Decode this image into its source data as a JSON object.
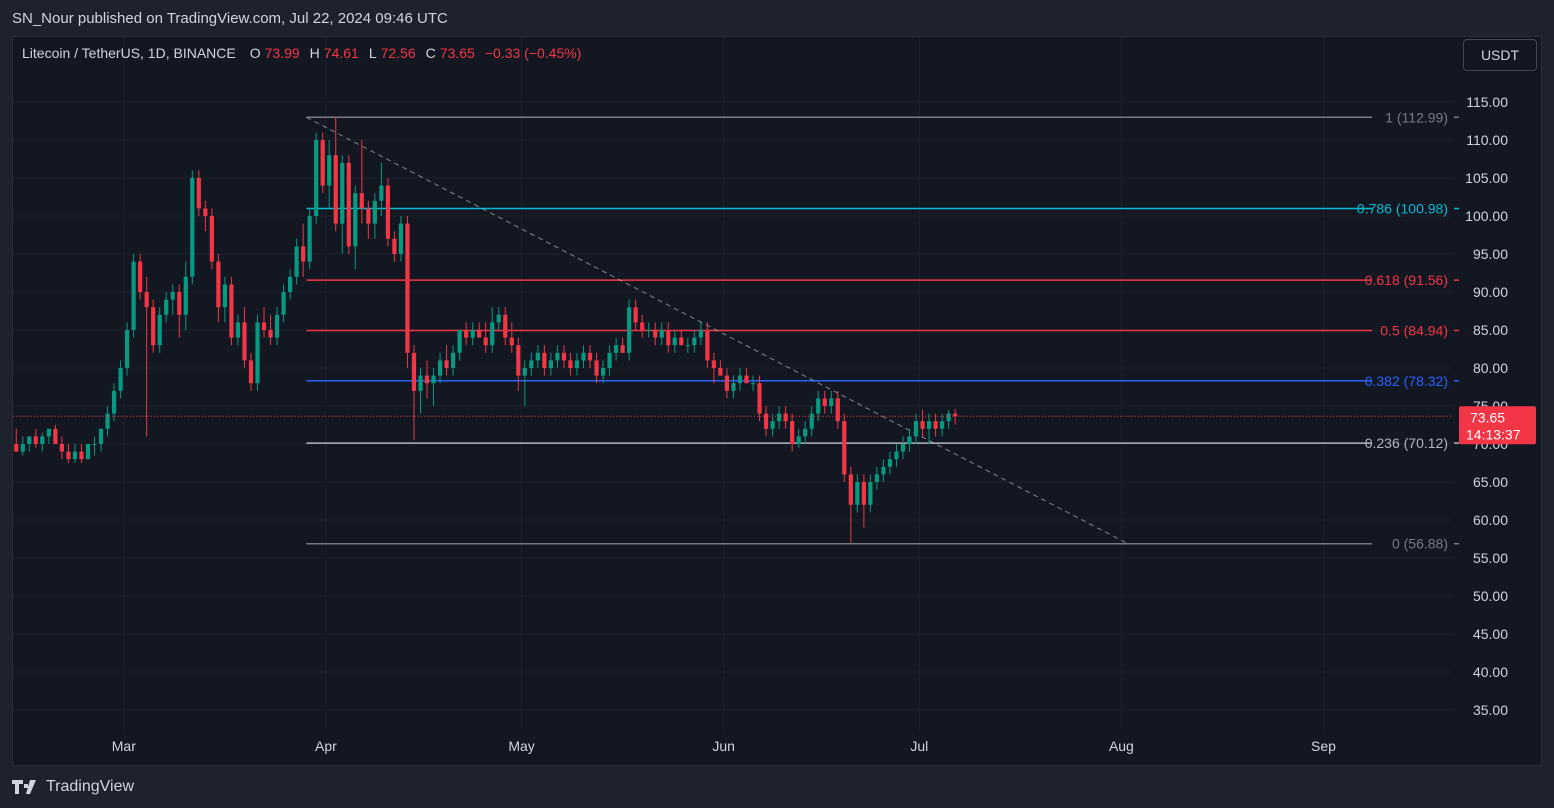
{
  "header": {
    "publisher_line": "SN_Nour published on TradingView.com, Jul 22, 2024 09:46 UTC"
  },
  "legend": {
    "symbol": "Litecoin / TetherUS, 1D, BINANCE",
    "open_key": "O",
    "open": "73.99",
    "high_key": "H",
    "high": "74.61",
    "low_key": "L",
    "low": "72.56",
    "close_key": "C",
    "close": "73.65",
    "change": "−0.33 (−0.45%)"
  },
  "currency_button": {
    "label": "USDT"
  },
  "footer": {
    "brand": "TradingView"
  },
  "colors": {
    "up": "#089981",
    "down": "#f23645",
    "fib_786": "#00bcd4",
    "fib_618": "#f23645",
    "fib_5": "#f23645",
    "fib_382": "#2962ff",
    "fib_236": "#b2b5be",
    "fib_extreme": "#787b86"
  },
  "chart_data": {
    "type": "candlestick",
    "symbol": "LTC/USDT",
    "interval": "1D",
    "y_ticks": [
      "115.00",
      "110.00",
      "105.00",
      "100.00",
      "95.00",
      "90.00",
      "85.00",
      "80.00",
      "75.00",
      "70.00",
      "65.00",
      "60.00",
      "55.00",
      "50.00",
      "45.00",
      "40.00",
      "35.00"
    ],
    "y_tick_values": [
      115,
      110,
      105,
      100,
      95,
      90,
      85,
      80,
      75,
      70,
      65,
      60,
      55,
      50,
      45,
      40,
      35
    ],
    "ylim": [
      32.5,
      119.5
    ],
    "x_ticks": [
      "Mar",
      "Apr",
      "May",
      "Jun",
      "Jul",
      "Aug",
      "Sep"
    ],
    "x_tick_days": [
      12,
      43,
      73,
      104,
      134,
      165,
      196
    ],
    "x_range_days": [
      -5,
      221
    ],
    "last_price": "73.65",
    "countdown": "14:13:37",
    "fib_levels": [
      {
        "label": "1 (112.99)",
        "value": 112.99,
        "color_key": "fib_extreme"
      },
      {
        "label": "0.786 (100.98)",
        "value": 100.98,
        "color_key": "fib_786"
      },
      {
        "label": "0.618 (91.56)",
        "value": 91.56,
        "color_key": "fib_618"
      },
      {
        "label": "0.5 (84.94)",
        "value": 84.94,
        "color_key": "fib_5"
      },
      {
        "label": "0.382 (78.32)",
        "value": 78.32,
        "color_key": "fib_382"
      },
      {
        "label": "0.236 (70.12)",
        "value": 70.12,
        "color_key": "fib_236"
      },
      {
        "label": "0 (56.88)",
        "value": 56.88,
        "color_key": "fib_extreme"
      }
    ],
    "fib_start_day": 40,
    "trendline": {
      "start": [
        40,
        112.99
      ],
      "end": [
        166,
        56.88
      ]
    },
    "candles": [
      {
        "o": 70,
        "h": 72,
        "l": 69,
        "c": 69
      },
      {
        "o": 69,
        "h": 71,
        "l": 68.5,
        "c": 70
      },
      {
        "o": 70,
        "h": 71,
        "l": 69,
        "c": 71
      },
      {
        "o": 71,
        "h": 72,
        "l": 69.5,
        "c": 70
      },
      {
        "o": 70,
        "h": 71.5,
        "l": 69,
        "c": 71
      },
      {
        "o": 71,
        "h": 72,
        "l": 70,
        "c": 72
      },
      {
        "o": 72,
        "h": 72.5,
        "l": 70,
        "c": 70
      },
      {
        "o": 70,
        "h": 71,
        "l": 68,
        "c": 69
      },
      {
        "o": 69,
        "h": 70,
        "l": 67.5,
        "c": 68
      },
      {
        "o": 68,
        "h": 70,
        "l": 67.5,
        "c": 69
      },
      {
        "o": 69,
        "h": 70,
        "l": 67.5,
        "c": 68
      },
      {
        "o": 68,
        "h": 70,
        "l": 68,
        "c": 70
      },
      {
        "o": 70,
        "h": 71,
        "l": 68.5,
        "c": 70
      },
      {
        "o": 70,
        "h": 72,
        "l": 69,
        "c": 72
      },
      {
        "o": 72,
        "h": 75,
        "l": 71,
        "c": 74
      },
      {
        "o": 74,
        "h": 78,
        "l": 73,
        "c": 77
      },
      {
        "o": 77,
        "h": 81,
        "l": 76,
        "c": 80
      },
      {
        "o": 80,
        "h": 86,
        "l": 79,
        "c": 85
      },
      {
        "o": 85,
        "h": 95,
        "l": 84,
        "c": 94
      },
      {
        "o": 94,
        "h": 95,
        "l": 89,
        "c": 90
      },
      {
        "o": 90,
        "h": 92,
        "l": 71,
        "c": 88
      },
      {
        "o": 88,
        "h": 89,
        "l": 82,
        "c": 83
      },
      {
        "o": 83,
        "h": 88,
        "l": 82,
        "c": 87
      },
      {
        "o": 87,
        "h": 90,
        "l": 86,
        "c": 89
      },
      {
        "o": 89,
        "h": 91,
        "l": 87,
        "c": 90
      },
      {
        "o": 90,
        "h": 91,
        "l": 84,
        "c": 87
      },
      {
        "o": 87,
        "h": 94,
        "l": 85,
        "c": 92
      },
      {
        "o": 92,
        "h": 106,
        "l": 91,
        "c": 105
      },
      {
        "o": 105,
        "h": 106,
        "l": 100,
        "c": 101
      },
      {
        "o": 101,
        "h": 102,
        "l": 98,
        "c": 100
      },
      {
        "o": 100,
        "h": 101,
        "l": 93,
        "c": 94
      },
      {
        "o": 94,
        "h": 95,
        "l": 86,
        "c": 88
      },
      {
        "o": 88,
        "h": 92,
        "l": 86,
        "c": 91
      },
      {
        "o": 91,
        "h": 92,
        "l": 83,
        "c": 84
      },
      {
        "o": 84,
        "h": 87,
        "l": 83,
        "c": 86
      },
      {
        "o": 86,
        "h": 88,
        "l": 80,
        "c": 81
      },
      {
        "o": 81,
        "h": 82,
        "l": 77,
        "c": 78
      },
      {
        "o": 78,
        "h": 87,
        "l": 77,
        "c": 86
      },
      {
        "o": 86,
        "h": 88,
        "l": 84,
        "c": 85
      },
      {
        "o": 85,
        "h": 87,
        "l": 83,
        "c": 84
      },
      {
        "o": 84,
        "h": 88,
        "l": 83,
        "c": 87
      },
      {
        "o": 87,
        "h": 91,
        "l": 86,
        "c": 90
      },
      {
        "o": 90,
        "h": 93,
        "l": 89,
        "c": 92
      },
      {
        "o": 92,
        "h": 97,
        "l": 91,
        "c": 96
      },
      {
        "o": 96,
        "h": 99,
        "l": 92,
        "c": 94
      },
      {
        "o": 94,
        "h": 101,
        "l": 93,
        "c": 100
      },
      {
        "o": 100,
        "h": 111,
        "l": 99,
        "c": 110
      },
      {
        "o": 110,
        "h": 111,
        "l": 103,
        "c": 104
      },
      {
        "o": 104,
        "h": 110,
        "l": 101,
        "c": 108
      },
      {
        "o": 108,
        "h": 113,
        "l": 98,
        "c": 99
      },
      {
        "o": 99,
        "h": 108,
        "l": 95,
        "c": 107
      },
      {
        "o": 107,
        "h": 108,
        "l": 95,
        "c": 96
      },
      {
        "o": 96,
        "h": 104,
        "l": 93,
        "c": 103
      },
      {
        "o": 103,
        "h": 110,
        "l": 99,
        "c": 101
      },
      {
        "o": 101,
        "h": 102,
        "l": 97,
        "c": 99
      },
      {
        "o": 99,
        "h": 103,
        "l": 97,
        "c": 102
      },
      {
        "o": 102,
        "h": 107,
        "l": 100,
        "c": 104
      },
      {
        "o": 104,
        "h": 105,
        "l": 96,
        "c": 97
      },
      {
        "o": 97,
        "h": 98,
        "l": 94,
        "c": 95
      },
      {
        "o": 95,
        "h": 100,
        "l": 94,
        "c": 99
      },
      {
        "o": 99,
        "h": 100,
        "l": 80,
        "c": 82
      },
      {
        "o": 82,
        "h": 83,
        "l": 70.5,
        "c": 77
      },
      {
        "o": 77,
        "h": 80,
        "l": 74,
        "c": 79
      },
      {
        "o": 79,
        "h": 81,
        "l": 76,
        "c": 78
      },
      {
        "o": 78,
        "h": 80,
        "l": 75,
        "c": 79
      },
      {
        "o": 79,
        "h": 82,
        "l": 78,
        "c": 81
      },
      {
        "o": 81,
        "h": 83,
        "l": 79,
        "c": 80
      },
      {
        "o": 80,
        "h": 83,
        "l": 79,
        "c": 82
      },
      {
        "o": 82,
        "h": 85,
        "l": 81,
        "c": 85
      },
      {
        "o": 85,
        "h": 86,
        "l": 83,
        "c": 84
      },
      {
        "o": 84,
        "h": 86,
        "l": 83,
        "c": 85
      },
      {
        "o": 85,
        "h": 86,
        "l": 84,
        "c": 84
      },
      {
        "o": 84,
        "h": 86,
        "l": 82,
        "c": 83
      },
      {
        "o": 83,
        "h": 88,
        "l": 82,
        "c": 86
      },
      {
        "o": 86,
        "h": 88,
        "l": 85,
        "c": 87
      },
      {
        "o": 87,
        "h": 88,
        "l": 83,
        "c": 84
      },
      {
        "o": 84,
        "h": 86,
        "l": 82,
        "c": 83
      },
      {
        "o": 83,
        "h": 84,
        "l": 77,
        "c": 79
      },
      {
        "o": 79,
        "h": 81,
        "l": 75,
        "c": 80
      },
      {
        "o": 80,
        "h": 82,
        "l": 79,
        "c": 81
      },
      {
        "o": 81,
        "h": 83,
        "l": 80,
        "c": 82
      },
      {
        "o": 82,
        "h": 83,
        "l": 79,
        "c": 80
      },
      {
        "o": 80,
        "h": 82,
        "l": 79,
        "c": 81
      },
      {
        "o": 81,
        "h": 83,
        "l": 80,
        "c": 82
      },
      {
        "o": 82,
        "h": 83,
        "l": 80,
        "c": 81
      },
      {
        "o": 81,
        "h": 82,
        "l": 79,
        "c": 80
      },
      {
        "o": 80,
        "h": 82,
        "l": 79,
        "c": 81
      },
      {
        "o": 81,
        "h": 83,
        "l": 80,
        "c": 82
      },
      {
        "o": 82,
        "h": 83,
        "l": 80,
        "c": 81
      },
      {
        "o": 81,
        "h": 82,
        "l": 78,
        "c": 79
      },
      {
        "o": 79,
        "h": 81,
        "l": 78,
        "c": 80
      },
      {
        "o": 80,
        "h": 83,
        "l": 79,
        "c": 82
      },
      {
        "o": 82,
        "h": 84,
        "l": 81,
        "c": 83
      },
      {
        "o": 83,
        "h": 84,
        "l": 82,
        "c": 82
      },
      {
        "o": 82,
        "h": 89,
        "l": 81,
        "c": 88
      },
      {
        "o": 88,
        "h": 89,
        "l": 85,
        "c": 86
      },
      {
        "o": 86,
        "h": 87,
        "l": 84,
        "c": 85
      },
      {
        "o": 85,
        "h": 86,
        "l": 84,
        "c": 85
      },
      {
        "o": 85,
        "h": 86,
        "l": 83,
        "c": 84
      },
      {
        "o": 84,
        "h": 86,
        "l": 83,
        "c": 85
      },
      {
        "o": 85,
        "h": 86,
        "l": 82,
        "c": 83
      },
      {
        "o": 83,
        "h": 85,
        "l": 82,
        "c": 84
      },
      {
        "o": 84,
        "h": 85,
        "l": 83,
        "c": 83
      },
      {
        "o": 83,
        "h": 84,
        "l": 82,
        "c": 83
      },
      {
        "o": 83,
        "h": 85,
        "l": 82,
        "c": 84
      },
      {
        "o": 84,
        "h": 86,
        "l": 83,
        "c": 85
      },
      {
        "o": 85,
        "h": 86,
        "l": 80,
        "c": 81
      },
      {
        "o": 81,
        "h": 82,
        "l": 78,
        "c": 80
      },
      {
        "o": 80,
        "h": 81,
        "l": 79,
        "c": 79
      },
      {
        "o": 79,
        "h": 80,
        "l": 76,
        "c": 77
      },
      {
        "o": 77,
        "h": 79,
        "l": 76,
        "c": 78
      },
      {
        "o": 78,
        "h": 80,
        "l": 77,
        "c": 79
      },
      {
        "o": 79,
        "h": 80,
        "l": 78,
        "c": 78
      },
      {
        "o": 78,
        "h": 79,
        "l": 77,
        "c": 78
      },
      {
        "o": 78,
        "h": 79,
        "l": 73,
        "c": 74
      },
      {
        "o": 74,
        "h": 75,
        "l": 71,
        "c": 72
      },
      {
        "o": 72,
        "h": 74,
        "l": 71,
        "c": 73
      },
      {
        "o": 73,
        "h": 75,
        "l": 72,
        "c": 74
      },
      {
        "o": 74,
        "h": 75,
        "l": 72,
        "c": 73
      },
      {
        "o": 73,
        "h": 74,
        "l": 69,
        "c": 70
      },
      {
        "o": 70,
        "h": 72,
        "l": 69.5,
        "c": 71
      },
      {
        "o": 71,
        "h": 73,
        "l": 70,
        "c": 72
      },
      {
        "o": 72,
        "h": 75,
        "l": 71,
        "c": 74
      },
      {
        "o": 74,
        "h": 77,
        "l": 73,
        "c": 76
      },
      {
        "o": 76,
        "h": 77,
        "l": 74,
        "c": 75
      },
      {
        "o": 75,
        "h": 77,
        "l": 74,
        "c": 76
      },
      {
        "o": 76,
        "h": 77,
        "l": 72,
        "c": 73
      },
      {
        "o": 73,
        "h": 74,
        "l": 65,
        "c": 66
      },
      {
        "o": 66,
        "h": 67,
        "l": 57,
        "c": 62
      },
      {
        "o": 62,
        "h": 66,
        "l": 61,
        "c": 65
      },
      {
        "o": 65,
        "h": 66,
        "l": 59,
        "c": 62
      },
      {
        "o": 62,
        "h": 66,
        "l": 61,
        "c": 65
      },
      {
        "o": 65,
        "h": 67,
        "l": 64,
        "c": 66
      },
      {
        "o": 66,
        "h": 68,
        "l": 65,
        "c": 67
      },
      {
        "o": 67,
        "h": 69,
        "l": 66,
        "c": 68
      },
      {
        "o": 68,
        "h": 70,
        "l": 67,
        "c": 69
      },
      {
        "o": 69,
        "h": 71,
        "l": 68,
        "c": 70
      },
      {
        "o": 70,
        "h": 72,
        "l": 69,
        "c": 71
      },
      {
        "o": 71,
        "h": 74,
        "l": 70,
        "c": 73
      },
      {
        "o": 73,
        "h": 74.5,
        "l": 71,
        "c": 72
      },
      {
        "o": 72,
        "h": 74,
        "l": 70,
        "c": 73
      },
      {
        "o": 73,
        "h": 74,
        "l": 71,
        "c": 72
      },
      {
        "o": 72,
        "h": 74,
        "l": 71,
        "c": 73
      },
      {
        "o": 73,
        "h": 74.5,
        "l": 72,
        "c": 74
      },
      {
        "o": 73.99,
        "h": 74.61,
        "l": 72.56,
        "c": 73.65
      }
    ]
  }
}
